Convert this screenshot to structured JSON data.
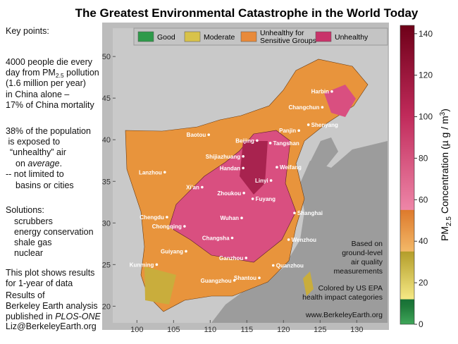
{
  "title": "The Greatest Environmental Catastrophe in the World Today",
  "notes": {
    "heading": "Key points:",
    "deaths": [
      "4000 people die every",
      "day from PM",
      "2.5",
      " pollution",
      "(1.6 million per year)",
      "in China alone –",
      "17% of China mortality"
    ],
    "exposure": [
      "38% of the population",
      " is exposed to",
      "“unhealthy” air",
      "on ",
      "average",
      ".",
      "-- not limited to",
      "basins or cities"
    ],
    "solutions": [
      "Solutions:",
      "scrubbers",
      "energy conservation",
      "shale gas",
      "nuclear"
    ],
    "period": [
      "This plot shows results",
      "for 1-year of data"
    ],
    "source": [
      "Results of",
      "Berkeley Earth analysis",
      "published in ",
      "PLOS-ONE"
    ],
    "contact": "Liz@BerkeleyEarth.org"
  },
  "map": {
    "legend": [
      {
        "name": "Good",
        "color": "#2e9a4a"
      },
      {
        "name": "Moderate",
        "color": "#d8c24a"
      },
      {
        "name": [
          "Unhealthy for",
          "Sensitive Groups"
        ],
        "color": "#e88a3a"
      },
      {
        "name": "Unhealthy",
        "color": "#c8336a"
      }
    ],
    "xlim": [
      96.7,
      134.2
    ],
    "ylim": [
      18,
      53.4
    ],
    "xticks": [
      100,
      105,
      110,
      115,
      120,
      125,
      130
    ],
    "yticks": [
      20,
      25,
      30,
      35,
      40,
      45,
      50
    ],
    "cities": [
      {
        "name": "Harbin",
        "lon": 126.6,
        "lat": 45.8
      },
      {
        "name": "Changchun",
        "lon": 125.3,
        "lat": 43.9
      },
      {
        "name": "Shenyang",
        "lon": 123.4,
        "lat": 41.8
      },
      {
        "name": "Panjin",
        "lon": 122.1,
        "lat": 41.1
      },
      {
        "name": "Baotou",
        "lon": 109.8,
        "lat": 40.6
      },
      {
        "name": "Beijing",
        "lon": 116.4,
        "lat": 39.9
      },
      {
        "name": "Tangshan",
        "lon": 118.2,
        "lat": 39.6
      },
      {
        "name": "Shijiazhuang",
        "lon": 114.5,
        "lat": 38.0
      },
      {
        "name": "Handan",
        "lon": 114.5,
        "lat": 36.6
      },
      {
        "name": "Weifang",
        "lon": 119.1,
        "lat": 36.7
      },
      {
        "name": "Lanzhou",
        "lon": 103.8,
        "lat": 36.1
      },
      {
        "name": "Xi'an",
        "lon": 108.9,
        "lat": 34.3
      },
      {
        "name": "Linyi",
        "lon": 118.3,
        "lat": 35.1
      },
      {
        "name": "Zhoukou",
        "lon": 114.6,
        "lat": 33.6
      },
      {
        "name": "Fuyang",
        "lon": 115.8,
        "lat": 32.9
      },
      {
        "name": "Shanghai",
        "lon": 121.5,
        "lat": 31.2
      },
      {
        "name": "Chengdu",
        "lon": 104.1,
        "lat": 30.7
      },
      {
        "name": "Wuhan",
        "lon": 114.3,
        "lat": 30.6
      },
      {
        "name": "Chongqing",
        "lon": 106.5,
        "lat": 29.6
      },
      {
        "name": "Changsha",
        "lon": 113.0,
        "lat": 28.2
      },
      {
        "name": "Wenzhou",
        "lon": 120.7,
        "lat": 28.0
      },
      {
        "name": "Guiyang",
        "lon": 106.7,
        "lat": 26.6
      },
      {
        "name": "Ganzhou",
        "lon": 114.9,
        "lat": 25.8
      },
      {
        "name": "Quanzhou",
        "lon": 118.6,
        "lat": 24.9
      },
      {
        "name": "Kunming",
        "lon": 102.7,
        "lat": 25.0
      },
      {
        "name": "Shantou",
        "lon": 116.7,
        "lat": 23.4
      },
      {
        "name": "Guangzhou",
        "lon": 113.3,
        "lat": 23.1
      }
    ],
    "notes": [
      "Based on",
      "ground-level",
      "air quality",
      "measurements"
    ],
    "categories_note": [
      "Colored by US EPA",
      "health impact categories"
    ],
    "website": "www.BerkeleyEarth.org"
  },
  "colorbar": {
    "ylim": [
      0,
      144
    ],
    "yticks": [
      0,
      20,
      40,
      60,
      80,
      100,
      120,
      140
    ],
    "label": [
      "PM",
      "2.5",
      " Concentration (µ g / m",
      "3",
      ")"
    ]
  }
}
